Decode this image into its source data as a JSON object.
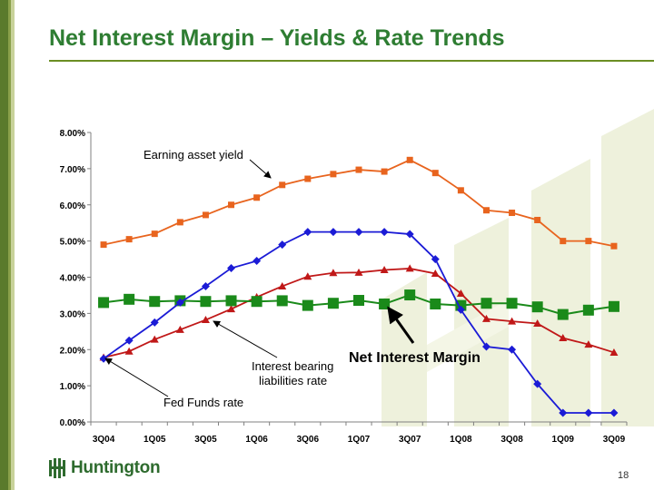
{
  "slide": {
    "title": "Net Interest Margin – Yields & Rate Trends",
    "page_number": "18",
    "logo_text": "Huntington"
  },
  "chart_data": {
    "type": "line",
    "title": "",
    "xlabel": "",
    "ylabel": "",
    "ylim": [
      0,
      8
    ],
    "y_tick_labels": [
      "0.00%",
      "1.00%",
      "2.00%",
      "3.00%",
      "4.00%",
      "5.00%",
      "6.00%",
      "7.00%",
      "8.00%"
    ],
    "x": [
      "3Q04",
      "4Q04",
      "1Q05",
      "2Q05",
      "3Q05",
      "4Q05",
      "1Q06",
      "2Q06",
      "3Q06",
      "4Q06",
      "1Q07",
      "2Q07",
      "3Q07",
      "4Q07",
      "1Q08",
      "2Q08",
      "3Q08",
      "4Q08",
      "1Q09",
      "2Q09",
      "3Q09"
    ],
    "x_tick_labels": [
      "3Q04",
      "",
      "1Q05",
      "",
      "3Q05",
      "",
      "1Q06",
      "",
      "3Q06",
      "",
      "1Q07",
      "",
      "3Q07",
      "",
      "1Q08",
      "",
      "3Q08",
      "",
      "1Q09",
      "",
      "3Q09"
    ],
    "grid": false,
    "series": [
      {
        "name": "Earning asset yield",
        "color": "#e8641e",
        "marker": "square",
        "values": [
          4.9,
          5.05,
          5.2,
          5.52,
          5.72,
          6.0,
          6.2,
          6.55,
          6.72,
          6.85,
          6.97,
          6.92,
          7.24,
          6.88,
          6.4,
          5.85,
          5.78,
          5.58,
          5.0,
          5.0,
          4.86
        ]
      },
      {
        "name": "Fed Funds rate",
        "color": "#1b1bd6",
        "marker": "diamond",
        "values": [
          1.75,
          2.25,
          2.75,
          3.3,
          3.75,
          4.25,
          4.45,
          4.9,
          5.25,
          5.25,
          5.25,
          5.25,
          5.19,
          4.5,
          3.1,
          2.08,
          2.0,
          1.05,
          0.25,
          0.25,
          0.25
        ]
      },
      {
        "name": "Interest bearing liabilities rate",
        "color": "#c01818",
        "marker": "triangle",
        "values": [
          1.78,
          1.95,
          2.28,
          2.55,
          2.82,
          3.12,
          3.45,
          3.75,
          4.02,
          4.12,
          4.13,
          4.2,
          4.24,
          4.1,
          3.55,
          2.85,
          2.78,
          2.72,
          2.32,
          2.14,
          1.92
        ]
      },
      {
        "name": "Net Interest Margin",
        "color": "#1a8a1a",
        "marker": "bigsquare",
        "values": [
          3.3,
          3.39,
          3.33,
          3.35,
          3.33,
          3.35,
          3.33,
          3.35,
          3.22,
          3.28,
          3.36,
          3.26,
          3.51,
          3.26,
          3.22,
          3.28,
          3.28,
          3.18,
          2.97,
          3.09,
          3.19
        ]
      }
    ],
    "annotations": {
      "earning": "Earning asset yield",
      "fed": "Fed Funds rate",
      "ibl_line1": "Interest bearing",
      "ibl_line2": "liabilities rate",
      "nim": "Net Interest Margin"
    }
  }
}
